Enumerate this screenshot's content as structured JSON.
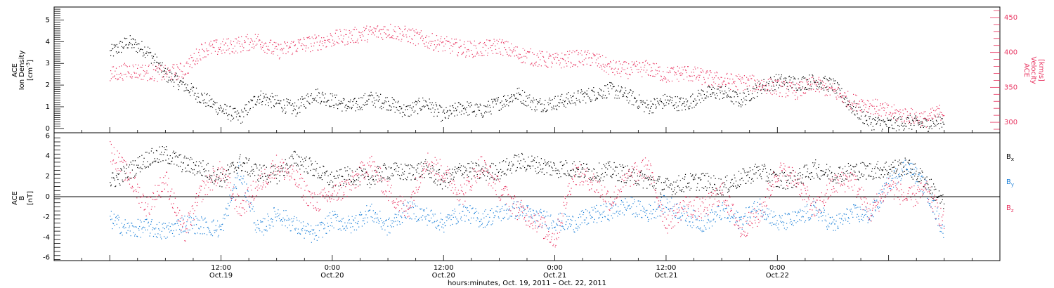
{
  "colors": {
    "density": "#000000",
    "velocity": "#e8325f",
    "bx": "#000000",
    "by": "#1a7fd8",
    "bz": "#e8325f"
  },
  "chart_data": [
    {
      "type": "scatter",
      "panel": "top",
      "left_axis": {
        "label_lines": [
          "ACE",
          "Ion Density"
        ],
        "unit_base": "[cm",
        "unit_sup": "-3",
        "unit_close": "]",
        "ylim": [
          -0.2,
          5.6
        ],
        "ticks": [
          0,
          1,
          2,
          3,
          4,
          5
        ]
      },
      "right_axis": {
        "label_lines": [
          "ACE",
          "Velocity",
          "[km/s]"
        ],
        "ylim": [
          285,
          465
        ],
        "ticks": [
          300,
          350,
          400,
          450
        ]
      },
      "series": [
        {
          "key": "density",
          "axis": "left",
          "x": [
            0,
            2,
            4,
            6,
            8,
            10,
            12,
            14,
            16,
            18,
            20,
            22,
            24,
            26,
            28,
            30,
            32,
            34,
            36,
            38,
            40,
            42,
            44,
            46,
            48,
            50,
            52,
            54,
            56,
            58,
            60,
            62,
            64,
            66,
            68,
            70,
            72,
            74,
            76,
            78,
            80,
            82,
            84,
            86,
            88,
            90
          ],
          "y": [
            3.5,
            4.0,
            3.6,
            2.5,
            2.0,
            1.4,
            0.9,
            0.5,
            1.5,
            1.2,
            0.9,
            1.6,
            1.3,
            1.0,
            1.4,
            1.2,
            0.8,
            1.2,
            0.6,
            1.0,
            0.8,
            1.2,
            1.6,
            1.1,
            1.2,
            1.4,
            1.6,
            1.8,
            1.5,
            1.0,
            1.3,
            1.1,
            1.6,
            1.7,
            1.3,
            1.9,
            2.2,
            2.1,
            2.2,
            2.0,
            1.0,
            0.3,
            0.2,
            0.3,
            0.2,
            0.4
          ]
        },
        {
          "key": "velocity",
          "axis": "right",
          "x": [
            0,
            2,
            4,
            6,
            8,
            10,
            12,
            14,
            16,
            18,
            20,
            22,
            24,
            26,
            28,
            30,
            32,
            34,
            36,
            38,
            40,
            42,
            44,
            46,
            48,
            50,
            52,
            54,
            56,
            58,
            60,
            62,
            64,
            66,
            68,
            70,
            72,
            74,
            76,
            78,
            80,
            82,
            84,
            86,
            88,
            90
          ],
          "y": [
            368,
            375,
            372,
            370,
            375,
            405,
            408,
            412,
            418,
            402,
            410,
            414,
            420,
            424,
            428,
            432,
            426,
            418,
            412,
            406,
            405,
            410,
            398,
            392,
            388,
            392,
            392,
            378,
            375,
            378,
            368,
            372,
            365,
            360,
            358,
            355,
            350,
            345,
            355,
            345,
            330,
            325,
            315,
            310,
            305,
            318
          ]
        }
      ]
    },
    {
      "type": "scatter",
      "panel": "bottom",
      "left_axis": {
        "label_lines": [
          "ACE",
          "B"
        ],
        "unit_base": "[nT]",
        "ylim": [
          -6.3,
          6.3
        ],
        "ticks": [
          -6,
          -4,
          -2,
          0,
          2,
          4,
          6
        ]
      },
      "series": [
        {
          "key": "bx",
          "name_base": "B",
          "name_sub": "x",
          "x": [
            0,
            2,
            4,
            6,
            8,
            10,
            12,
            14,
            16,
            18,
            20,
            22,
            24,
            26,
            28,
            30,
            32,
            34,
            36,
            38,
            40,
            42,
            44,
            46,
            48,
            50,
            52,
            54,
            56,
            58,
            60,
            62,
            64,
            66,
            68,
            70,
            72,
            74,
            76,
            78,
            80,
            82,
            84,
            86,
            88,
            90
          ],
          "y": [
            1.5,
            2.5,
            3.8,
            4.2,
            3.2,
            2.8,
            1.8,
            3.4,
            2.4,
            2.2,
            3.8,
            2.8,
            1.6,
            2.2,
            1.8,
            2.6,
            2.4,
            2.8,
            1.5,
            2.8,
            2.4,
            2.6,
            3.5,
            3.2,
            2.8,
            2.8,
            2.4,
            2.6,
            2.2,
            1.6,
            1.0,
            1.4,
            1.6,
            1.0,
            1.8,
            2.6,
            1.6,
            1.8,
            2.8,
            2.2,
            2.6,
            2.6,
            2.8,
            3.0,
            1.6,
            -0.8
          ]
        },
        {
          "key": "by",
          "name_base": "B",
          "name_sub": "y",
          "x": [
            0,
            2,
            4,
            6,
            8,
            10,
            12,
            14,
            16,
            18,
            20,
            22,
            24,
            26,
            28,
            30,
            32,
            34,
            36,
            38,
            40,
            42,
            44,
            46,
            48,
            50,
            52,
            54,
            56,
            58,
            60,
            62,
            64,
            66,
            68,
            70,
            72,
            74,
            76,
            78,
            80,
            82,
            84,
            86,
            88,
            90
          ],
          "y": [
            -2.2,
            -3.2,
            -3.0,
            -3.4,
            -2.6,
            -2.8,
            -3.2,
            2.6,
            -3.4,
            -1.6,
            -2.8,
            -3.8,
            -2.2,
            -2.8,
            -1.4,
            -3.0,
            -1.2,
            -1.8,
            -2.6,
            -1.4,
            -2.2,
            -1.6,
            -1.2,
            -2.0,
            -2.4,
            -2.6,
            -1.8,
            -1.4,
            -0.8,
            -1.6,
            -0.6,
            -1.8,
            -2.6,
            -1.4,
            -2.4,
            -0.8,
            -2.6,
            -2.2,
            -1.2,
            -2.8,
            -1.6,
            -1.8,
            1.4,
            3.2,
            0.8,
            -3.6
          ]
        },
        {
          "key": "bz",
          "name_base": "B",
          "name_sub": "z",
          "x": [
            0,
            2,
            4,
            6,
            8,
            10,
            12,
            14,
            16,
            18,
            20,
            22,
            24,
            26,
            28,
            30,
            32,
            34,
            36,
            38,
            40,
            42,
            44,
            46,
            48,
            50,
            52,
            54,
            56,
            58,
            60,
            62,
            64,
            66,
            68,
            70,
            72,
            74,
            76,
            78,
            80,
            82,
            84,
            86,
            88,
            90
          ],
          "y": [
            4.6,
            2.0,
            -1.0,
            1.8,
            -3.6,
            0.8,
            2.6,
            -1.2,
            1.2,
            3.2,
            1.8,
            -0.6,
            0.2,
            1.2,
            3.4,
            0.6,
            -1.4,
            3.6,
            2.4,
            0.2,
            3.2,
            0.8,
            -1.2,
            -2.4,
            -4.2,
            2.4,
            1.6,
            -0.4,
            2.0,
            3.0,
            -2.6,
            -0.8,
            -1.2,
            0.6,
            -3.2,
            -1.8,
            2.6,
            1.8,
            -1.4,
            1.2,
            1.8,
            -1.6,
            1.2,
            -0.2,
            0.6,
            -2.6
          ]
        }
      ]
    }
  ],
  "x_axis": {
    "range_hours": [
      -6,
      96
    ],
    "ticks": [
      {
        "hours": 12,
        "time": "12:00",
        "date": "Oct.19"
      },
      {
        "hours": 24,
        "time": "0:00",
        "date": "Oct.20"
      },
      {
        "hours": 36,
        "time": "12:00",
        "date": "Oct.20"
      },
      {
        "hours": 48,
        "time": "0:00",
        "date": "Oct.21"
      },
      {
        "hours": 60,
        "time": "12:00",
        "date": "Oct.21"
      },
      {
        "hours": 72,
        "time": "0:00",
        "date": "Oct.22"
      }
    ],
    "title": "hours:minutes, Oct. 19, 2011 – Oct. 22, 2011"
  }
}
